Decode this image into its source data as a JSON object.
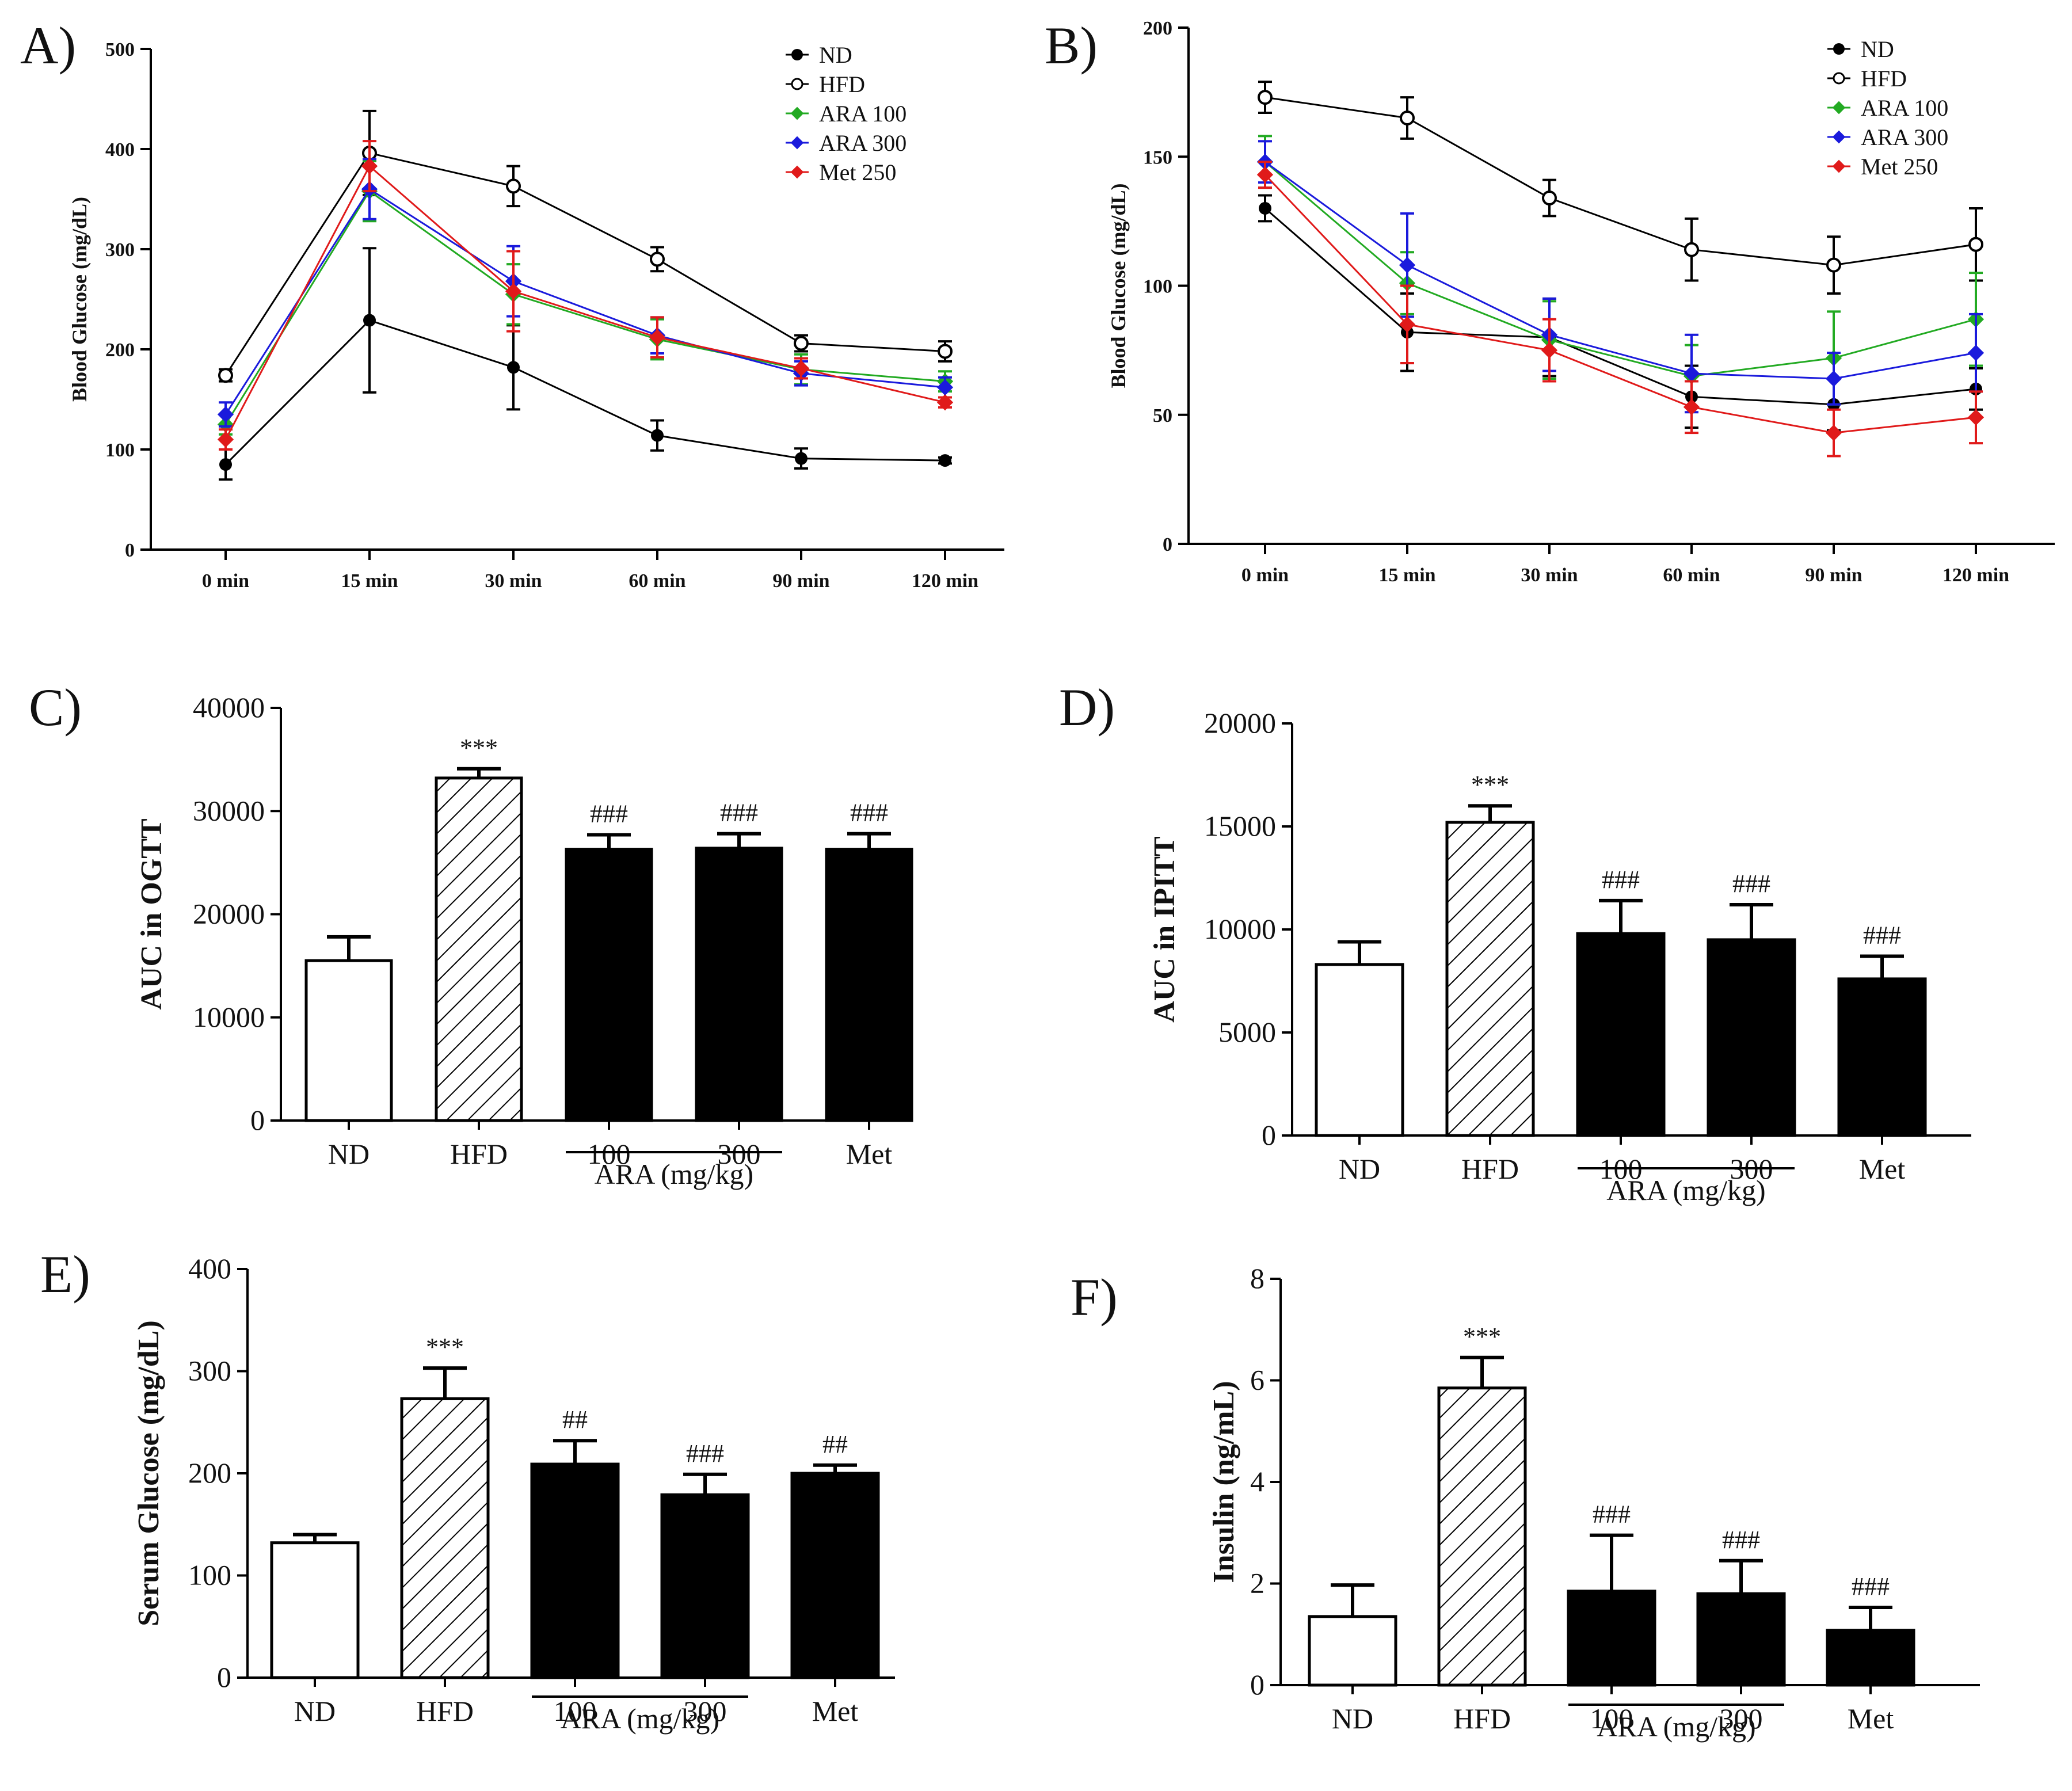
{
  "figure": {
    "chart_data": [
      {
        "id": "A",
        "panel_label": "A)",
        "type": "line",
        "title": "",
        "ylabel": "Blood Glucose (mg/dL)",
        "xlabel": "",
        "categories": [
          "0 min",
          "15 min",
          "30 min",
          "60 min",
          "90 min",
          "120 min"
        ],
        "ylim": [
          0,
          500
        ],
        "yticks": [
          0,
          100,
          200,
          300,
          400,
          500
        ],
        "grid": false,
        "legend_position": "top-right",
        "series": [
          {
            "name": "ND",
            "color": "#000000",
            "marker": "filled",
            "values": [
              85,
              229,
              182,
              114,
              91,
              89
            ],
            "errors": [
              15,
              72,
              42,
              15,
              10,
              3
            ]
          },
          {
            "name": "HFD",
            "color": "#000000",
            "marker": "open",
            "values": [
              174,
              396,
              363,
              290,
              206,
              198
            ],
            "errors": [
              6,
              42,
              20,
              12,
              8,
              10
            ]
          },
          {
            "name": "ARA 100",
            "color": "#22aa22",
            "marker": "filled",
            "values": [
              125,
              358,
              255,
              210,
              180,
              168
            ],
            "errors": [
              10,
              30,
              30,
              20,
              15,
              10
            ]
          },
          {
            "name": "ARA 300",
            "color": "#1a1adc",
            "marker": "filled",
            "values": [
              135,
              360,
              268,
              214,
              176,
              162
            ],
            "errors": [
              12,
              30,
              35,
              18,
              12,
              10
            ]
          },
          {
            "name": "Met 250",
            "color": "#e01a1a",
            "marker": "filled",
            "values": [
              110,
              383,
              258,
              212,
              181,
              147
            ],
            "errors": [
              10,
              25,
              40,
              20,
              10,
              5
            ]
          }
        ]
      },
      {
        "id": "B",
        "panel_label": "B)",
        "type": "line",
        "title": "",
        "ylabel": "Blood Glucose (mg/dL)",
        "xlabel": "",
        "categories": [
          "0 min",
          "15 min",
          "30 min",
          "60 min",
          "90 min",
          "120 min"
        ],
        "ylim": [
          0,
          200
        ],
        "yticks": [
          0,
          50,
          100,
          150,
          200
        ],
        "grid": false,
        "legend_position": "top-right",
        "series": [
          {
            "name": "ND",
            "color": "#000000",
            "marker": "filled",
            "values": [
              130,
              82,
              80,
              57,
              54,
              60
            ],
            "errors": [
              5,
              15,
              15,
              12,
              10,
              8
            ]
          },
          {
            "name": "HFD",
            "color": "#000000",
            "marker": "open",
            "values": [
              173,
              165,
              134,
              114,
              108,
              116
            ],
            "errors": [
              6,
              8,
              7,
              12,
              11,
              14
            ]
          },
          {
            "name": "ARA 100",
            "color": "#22aa22",
            "marker": "filled",
            "values": [
              148,
              101,
              79,
              65,
              72,
              87
            ],
            "errors": [
              10,
              12,
              15,
              12,
              18,
              18
            ]
          },
          {
            "name": "ARA 300",
            "color": "#1a1adc",
            "marker": "filled",
            "values": [
              148,
              108,
              81,
              66,
              64,
              74
            ],
            "errors": [
              8,
              20,
              14,
              15,
              10,
              15
            ]
          },
          {
            "name": "Met 250",
            "color": "#e01a1a",
            "marker": "filled",
            "values": [
              143,
              85,
              75,
              53,
              43,
              49
            ],
            "errors": [
              5,
              15,
              12,
              10,
              9,
              10
            ]
          }
        ]
      },
      {
        "id": "C",
        "panel_label": "C)",
        "type": "bar",
        "title": "",
        "ylabel": "AUC in OGTT",
        "xlabel": "",
        "categories": [
          "ND",
          "HFD",
          "100",
          "300",
          "Met"
        ],
        "values": [
          15500,
          33200,
          26300,
          26400,
          26300
        ],
        "errors": [
          2300,
          900,
          1400,
          1400,
          1500
        ],
        "significance": [
          "",
          "***",
          "###",
          "###",
          "###"
        ],
        "ylim": [
          0,
          40000
        ],
        "yticks": [
          0,
          10000,
          20000,
          30000,
          40000
        ],
        "group_label": "ARA (mg/kg)",
        "grid": false
      },
      {
        "id": "D",
        "panel_label": "D)",
        "type": "bar",
        "title": "",
        "ylabel": "AUC in IPITT",
        "xlabel": "",
        "categories": [
          "ND",
          "HFD",
          "100",
          "300",
          "Met"
        ],
        "values": [
          8300,
          15200,
          9800,
          9500,
          7600
        ],
        "errors": [
          1100,
          800,
          1600,
          1700,
          1100
        ],
        "significance": [
          "",
          "***",
          "###",
          "###",
          "###"
        ],
        "ylim": [
          0,
          20000
        ],
        "yticks": [
          0,
          5000,
          10000,
          15000,
          20000
        ],
        "group_label": "ARA (mg/kg)",
        "grid": false
      },
      {
        "id": "E",
        "panel_label": "E)",
        "type": "bar",
        "title": "",
        "ylabel": "Serum Glucose (mg/dL)",
        "xlabel": "",
        "categories": [
          "ND",
          "HFD",
          "100",
          "300",
          "Met"
        ],
        "values": [
          132,
          273,
          209,
          179,
          200
        ],
        "errors": [
          8,
          30,
          23,
          20,
          8
        ],
        "significance": [
          "",
          "***",
          "##",
          "###",
          "##"
        ],
        "ylim": [
          0,
          400
        ],
        "yticks": [
          0,
          100,
          200,
          300,
          400
        ],
        "group_label": "ARA (mg/kg)",
        "grid": false
      },
      {
        "id": "F",
        "panel_label": "F)",
        "type": "bar",
        "title": "",
        "ylabel": "Insulin (ng/mL)",
        "xlabel": "",
        "categories": [
          "ND",
          "HFD",
          "100",
          "300",
          "Met"
        ],
        "values": [
          1.35,
          5.85,
          1.85,
          1.8,
          1.08
        ],
        "errors": [
          0.62,
          0.6,
          1.1,
          0.65,
          0.45
        ],
        "significance": [
          "",
          "***",
          "###",
          "###",
          "###"
        ],
        "ylim": [
          0,
          8
        ],
        "yticks": [
          0,
          2,
          4,
          6,
          8
        ],
        "group_label": "ARA (mg/kg)",
        "grid": false
      }
    ]
  }
}
